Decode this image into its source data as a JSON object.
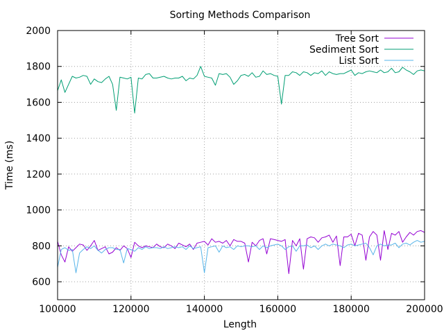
{
  "chart_data": {
    "type": "line",
    "title": "Sorting Methods Comparison",
    "xlabel": "Length",
    "ylabel": "Time (ms)",
    "xlim": [
      100000,
      200000
    ],
    "ylim": [
      500,
      2000
    ],
    "xticks": [
      100000,
      120000,
      140000,
      160000,
      180000,
      200000
    ],
    "yticks": [
      600,
      800,
      1000,
      1200,
      1400,
      1600,
      1800,
      2000
    ],
    "grid": true,
    "legend_position": "top-right",
    "series": [
      {
        "name": "Tree Sort",
        "color": "#9400d3",
        "x": [
          100000,
          101000,
          102000,
          103000,
          104000,
          105000,
          106000,
          107000,
          108000,
          109000,
          110000,
          111000,
          112000,
          113000,
          114000,
          115000,
          116000,
          117000,
          118000,
          119000,
          120000,
          121000,
          122000,
          123000,
          124000,
          125000,
          126000,
          127000,
          128000,
          129000,
          130000,
          131000,
          132000,
          133000,
          134000,
          135000,
          136000,
          137000,
          138000,
          139000,
          140000,
          141000,
          142000,
          143000,
          144000,
          145000,
          146000,
          147000,
          148000,
          149000,
          150000,
          151000,
          152000,
          153000,
          154000,
          155000,
          156000,
          157000,
          158000,
          159000,
          160000,
          161000,
          162000,
          163000,
          164000,
          165000,
          166000,
          167000,
          168000,
          169000,
          170000,
          171000,
          172000,
          173000,
          174000,
          175000,
          176000,
          177000,
          178000,
          179000,
          180000,
          181000,
          182000,
          183000,
          184000,
          185000,
          186000,
          187000,
          188000,
          189000,
          190000,
          191000,
          192000,
          193000,
          194000,
          195000,
          196000,
          197000,
          198000,
          199000,
          200000
        ],
        "y": [
          825,
          750,
          710,
          795,
          770,
          790,
          810,
          805,
          775,
          800,
          830,
          775,
          785,
          795,
          755,
          765,
          790,
          775,
          800,
          785,
          735,
          820,
          800,
          790,
          800,
          795,
          790,
          810,
          795,
          790,
          810,
          800,
          785,
          815,
          805,
          795,
          810,
          780,
          815,
          820,
          825,
          805,
          840,
          820,
          825,
          815,
          830,
          800,
          835,
          825,
          825,
          815,
          710,
          820,
          800,
          830,
          840,
          755,
          840,
          835,
          830,
          825,
          835,
          645,
          830,
          800,
          840,
          670,
          840,
          850,
          845,
          820,
          845,
          850,
          860,
          820,
          855,
          690,
          850,
          850,
          865,
          800,
          870,
          860,
          720,
          850,
          880,
          860,
          720,
          885,
          780,
          870,
          860,
          880,
          820,
          850,
          875,
          860,
          880,
          885,
          875
        ]
      },
      {
        "name": "Sediment Sort",
        "color": "#009e73",
        "x": [
          100000,
          101000,
          102000,
          103000,
          104000,
          105000,
          106000,
          107000,
          108000,
          109000,
          110000,
          111000,
          112000,
          113000,
          114000,
          115000,
          116000,
          117000,
          118000,
          119000,
          120000,
          121000,
          122000,
          123000,
          124000,
          125000,
          126000,
          127000,
          128000,
          129000,
          130000,
          131000,
          132000,
          133000,
          134000,
          135000,
          136000,
          137000,
          138000,
          139000,
          140000,
          141000,
          142000,
          143000,
          144000,
          145000,
          146000,
          147000,
          148000,
          149000,
          150000,
          151000,
          152000,
          153000,
          154000,
          155000,
          156000,
          157000,
          158000,
          159000,
          160000,
          161000,
          162000,
          163000,
          164000,
          165000,
          166000,
          167000,
          168000,
          169000,
          170000,
          171000,
          172000,
          173000,
          174000,
          175000,
          176000,
          177000,
          178000,
          179000,
          180000,
          181000,
          182000,
          183000,
          184000,
          185000,
          186000,
          187000,
          188000,
          189000,
          190000,
          191000,
          192000,
          193000,
          194000,
          195000,
          196000,
          197000,
          198000,
          199000,
          200000
        ],
        "y": [
          1665,
          1725,
          1655,
          1700,
          1745,
          1735,
          1740,
          1750,
          1745,
          1700,
          1730,
          1715,
          1710,
          1730,
          1745,
          1700,
          1555,
          1740,
          1735,
          1730,
          1740,
          1540,
          1735,
          1730,
          1755,
          1760,
          1735,
          1735,
          1740,
          1745,
          1735,
          1730,
          1735,
          1735,
          1745,
          1720,
          1735,
          1730,
          1750,
          1800,
          1745,
          1740,
          1735,
          1695,
          1760,
          1755,
          1760,
          1740,
          1700,
          1720,
          1750,
          1755,
          1745,
          1765,
          1740,
          1745,
          1775,
          1755,
          1760,
          1750,
          1745,
          1590,
          1750,
          1750,
          1770,
          1765,
          1750,
          1770,
          1765,
          1750,
          1765,
          1760,
          1775,
          1750,
          1770,
          1760,
          1755,
          1760,
          1760,
          1770,
          1780,
          1750,
          1765,
          1760,
          1770,
          1775,
          1770,
          1765,
          1780,
          1765,
          1770,
          1790,
          1765,
          1770,
          1795,
          1780,
          1770,
          1755,
          1775,
          1780,
          1775
        ]
      },
      {
        "name": "List Sort",
        "color": "#56b4e9",
        "x": [
          100000,
          101000,
          102000,
          103000,
          104000,
          105000,
          106000,
          107000,
          108000,
          109000,
          110000,
          111000,
          112000,
          113000,
          114000,
          115000,
          116000,
          117000,
          118000,
          119000,
          120000,
          121000,
          122000,
          123000,
          124000,
          125000,
          126000,
          127000,
          128000,
          129000,
          130000,
          131000,
          132000,
          133000,
          134000,
          135000,
          136000,
          137000,
          138000,
          139000,
          140000,
          141000,
          142000,
          143000,
          144000,
          145000,
          146000,
          147000,
          148000,
          149000,
          150000,
          151000,
          152000,
          153000,
          154000,
          155000,
          156000,
          157000,
          158000,
          159000,
          160000,
          161000,
          162000,
          163000,
          164000,
          165000,
          166000,
          167000,
          168000,
          169000,
          170000,
          171000,
          172000,
          173000,
          174000,
          175000,
          176000,
          177000,
          178000,
          179000,
          180000,
          181000,
          182000,
          183000,
          184000,
          185000,
          186000,
          187000,
          188000,
          189000,
          190000,
          191000,
          192000,
          193000,
          194000,
          195000,
          196000,
          197000,
          198000,
          199000,
          200000
        ],
        "y": [
          680,
          780,
          790,
          775,
          780,
          650,
          760,
          780,
          795,
          785,
          800,
          775,
          760,
          780,
          790,
          790,
          780,
          780,
          705,
          785,
          780,
          770,
          790,
          780,
          795,
          785,
          790,
          790,
          785,
          795,
          785,
          790,
          795,
          790,
          795,
          780,
          800,
          785,
          790,
          795,
          650,
          790,
          795,
          800,
          765,
          800,
          790,
          795,
          780,
          800,
          795,
          800,
          800,
          795,
          800,
          780,
          800,
          790,
          800,
          805,
          810,
          800,
          780,
          795,
          800,
          770,
          800,
          800,
          805,
          790,
          800,
          780,
          800,
          810,
          800,
          810,
          805,
          800,
          790,
          805,
          810,
          800,
          805,
          810,
          815,
          790,
          750,
          800,
          810,
          800,
          805,
          805,
          815,
          790,
          810,
          815,
          805,
          820,
          830,
          820,
          825
        ]
      }
    ]
  }
}
